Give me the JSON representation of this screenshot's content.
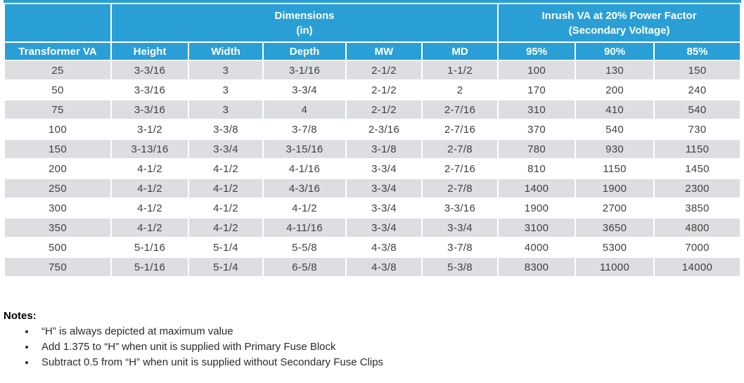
{
  "colors": {
    "header_blue": "#2A9FD6",
    "row_gray": "#DCDEE1",
    "body_text": "#414042"
  },
  "table": {
    "group_headers": {
      "dimensions": {
        "line1": "Dimensions",
        "line2": "(in)"
      },
      "inrush": {
        "line1": "Inrush VA at 20% Power Factor",
        "line2": "(Secondary Voltage)"
      }
    },
    "columns": [
      "Transformer VA",
      "Height",
      "Width",
      "Depth",
      "MW",
      "MD",
      "95%",
      "90%",
      "85%"
    ],
    "rows": [
      [
        "25",
        "3-3/16",
        "3",
        "3-1/16",
        "2-1/2",
        "1-1/2",
        "100",
        "130",
        "150"
      ],
      [
        "50",
        "3-3/16",
        "3",
        "3-3/4",
        "2-1/2",
        "2",
        "170",
        "200",
        "240"
      ],
      [
        "75",
        "3-3/16",
        "3",
        "4",
        "2-1/2",
        "2-7/16",
        "310",
        "410",
        "540"
      ],
      [
        "100",
        "3-1/2",
        "3-3/8",
        "3-7/8",
        "2-3/16",
        "2-7/16",
        "370",
        "540",
        "730"
      ],
      [
        "150",
        "3-13/16",
        "3-3/4",
        "3-15/16",
        "3-1/8",
        "2-7/8",
        "780",
        "930",
        "1150"
      ],
      [
        "200",
        "4-1/2",
        "4-1/2",
        "4-1/16",
        "3-3/4",
        "2-7/16",
        "810",
        "1150",
        "1450"
      ],
      [
        "250",
        "4-1/2",
        "4-1/2",
        "4-3/16",
        "3-3/4",
        "2-7/8",
        "1400",
        "1900",
        "2300"
      ],
      [
        "300",
        "4-1/2",
        "4-1/2",
        "4-1/2",
        "3-3/4",
        "3-3/16",
        "1900",
        "2700",
        "3850"
      ],
      [
        "350",
        "4-1/2",
        "4-1/2",
        "4-11/16",
        "3-3/4",
        "3-3/4",
        "3100",
        "3650",
        "4800"
      ],
      [
        "500",
        "5-1/16",
        "5-1/4",
        "5-5/8",
        "4-3/8",
        "3-7/8",
        "4000",
        "5300",
        "7000"
      ],
      [
        "750",
        "5-1/16",
        "5-1/4",
        "6-5/8",
        "4-3/8",
        "5-3/8",
        "8300",
        "11000",
        "14000"
      ]
    ]
  },
  "notes": {
    "title": "Notes:",
    "items": [
      "“H” is always depicted at maximum value",
      "Add 1.375 to “H” when unit is supplied with Primary Fuse Block",
      "Subtract 0.5 from “H” when unit is supplied without Secondary Fuse Clips"
    ]
  }
}
